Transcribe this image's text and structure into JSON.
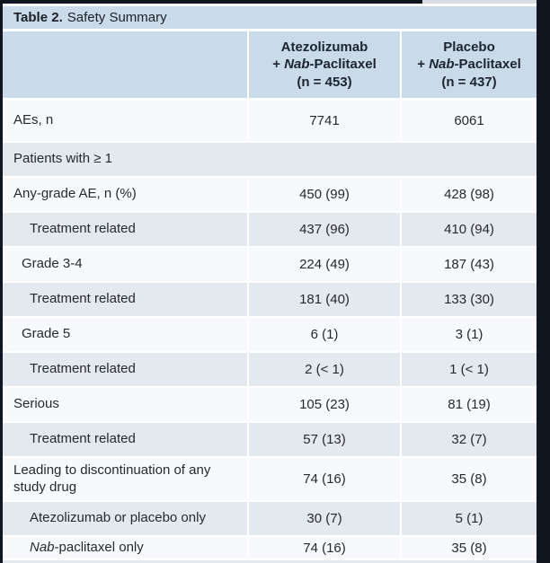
{
  "title": {
    "number": "Table 2.",
    "text": "Safety Summary"
  },
  "header": {
    "columns": [
      {
        "drug": "Atezolizumab",
        "plus": "+",
        "nab": "Nab",
        "suffix": "-Paclitaxel",
        "n": "(n = 453)"
      },
      {
        "drug": "Placebo",
        "plus": "+",
        "nab": "Nab",
        "suffix": "-Paclitaxel",
        "n": "(n = 437)"
      }
    ]
  },
  "rows": [
    {
      "label": "AEs, n",
      "indent": 0,
      "shade": "white",
      "values": [
        "7741",
        "6061"
      ]
    },
    {
      "label": "Patients with ≥ 1",
      "indent": 0,
      "shade": "gray",
      "span": true,
      "values": []
    },
    {
      "label": "Any-grade AE, n (%)",
      "indent": 0,
      "shade": "white",
      "values": [
        "450 (99)",
        "428 (98)"
      ]
    },
    {
      "label": "Treatment related",
      "indent": 2,
      "shade": "gray",
      "values": [
        "437 (96)",
        "410 (94)"
      ]
    },
    {
      "label": "Grade 3-4",
      "indent": 1,
      "shade": "white",
      "values": [
        "224 (49)",
        "187 (43)"
      ]
    },
    {
      "label": "Treatment related",
      "indent": 2,
      "shade": "gray",
      "values": [
        "181 (40)",
        "133 (30)"
      ]
    },
    {
      "label": "Grade 5",
      "indent": 1,
      "shade": "white",
      "values": [
        "6 (1)",
        "3 (1)"
      ]
    },
    {
      "label": "Treatment related",
      "indent": 2,
      "shade": "gray",
      "values": [
        "2 (< 1)",
        "1 (< 1)"
      ]
    },
    {
      "label": "Serious",
      "indent": 0,
      "shade": "white",
      "values": [
        "105 (23)",
        "81 (19)"
      ]
    },
    {
      "label": "Treatment related",
      "indent": 2,
      "shade": "gray",
      "values": [
        "57 (13)",
        "32 (7)"
      ]
    },
    {
      "label": "Leading to discontinuation of any study drug",
      "indent": 0,
      "shade": "white",
      "values": [
        "74 (16)",
        "35 (8)"
      ]
    },
    {
      "label": "Atezolizumab or placebo only",
      "indent": 2,
      "shade": "gray",
      "values": [
        "30 (7)",
        "5 (1)"
      ]
    },
    {
      "label_italic": "Nab",
      "label": "-paclitaxel only",
      "indent": 2,
      "shade": "white",
      "values": [
        "74 (16)",
        "35 (8)"
      ]
    }
  ],
  "colors": {
    "header_blue": "#c9dbe8",
    "row_gray": "#e4e9f0",
    "row_white": "#f7f9fc",
    "frame_dark": "#10161f"
  }
}
